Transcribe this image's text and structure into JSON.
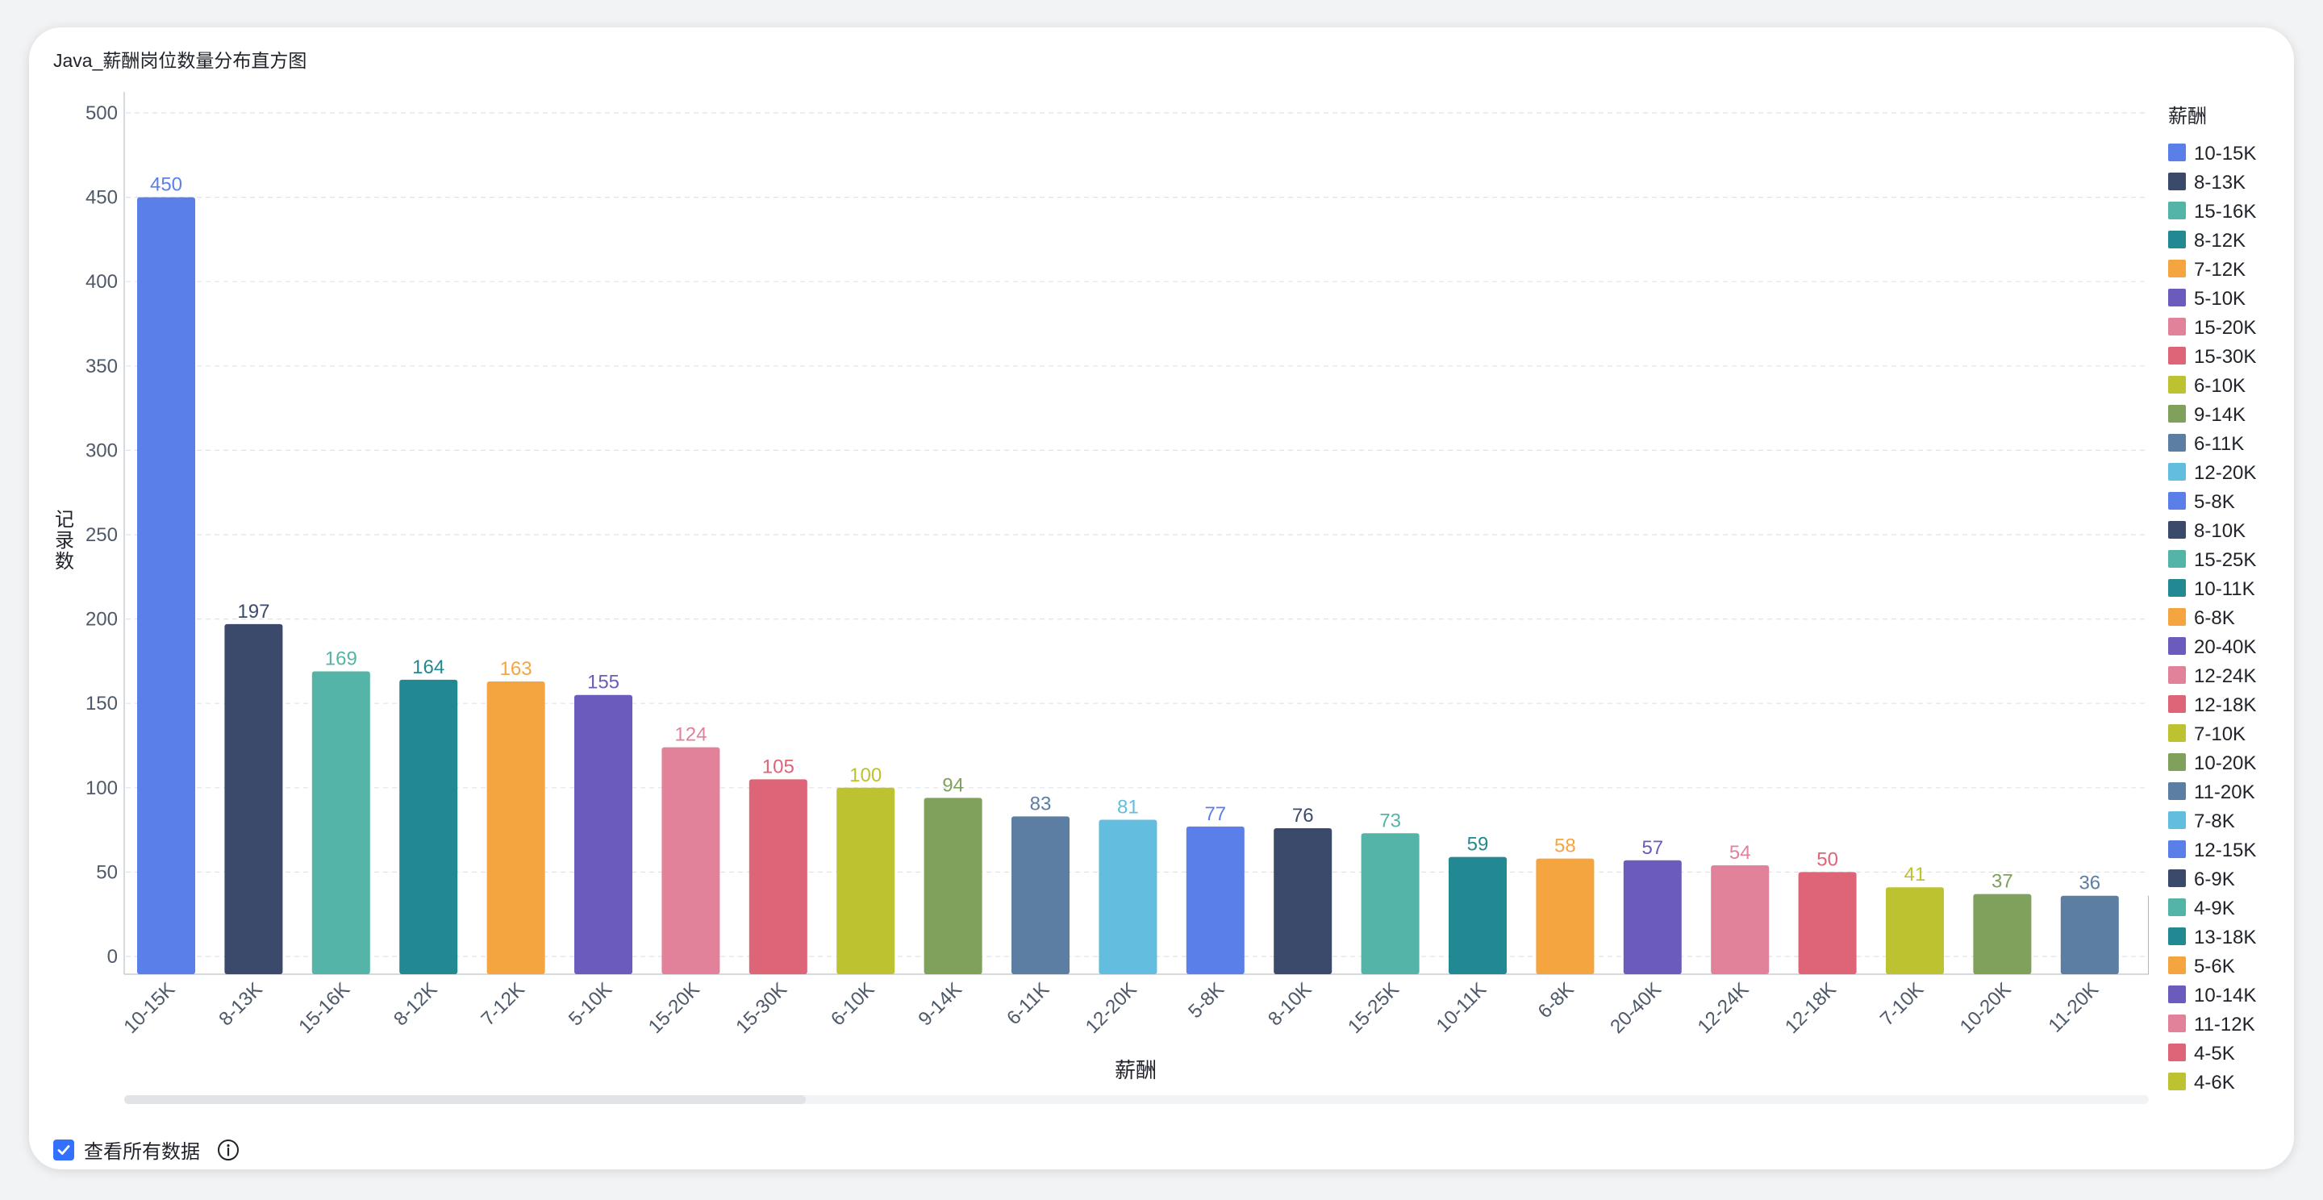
{
  "title": "Java_薪酬岗位数量分布直方图",
  "footer": {
    "checkbox_label": "查看所有数据",
    "checked": true,
    "info_icon": "info-circle-icon"
  },
  "chart_data": {
    "type": "bar",
    "title": "Java_薪酬岗位数量分布直方图",
    "xlabel": "薪酬",
    "ylabel": "记录数",
    "ylim": [
      0,
      500
    ],
    "yticks": [
      0,
      50,
      100,
      150,
      200,
      250,
      300,
      350,
      400,
      450,
      500
    ],
    "grid": true,
    "legend_position": "right",
    "legend_title": "薪酬",
    "categories": [
      "10-15K",
      "8-13K",
      "15-16K",
      "8-12K",
      "7-12K",
      "5-10K",
      "15-20K",
      "15-30K",
      "6-10K",
      "9-14K",
      "6-11K",
      "12-20K",
      "5-8K",
      "8-10K",
      "15-25K",
      "10-11K",
      "6-8K",
      "20-40K",
      "12-24K",
      "12-18K",
      "7-10K",
      "10-20K",
      "11-20K",
      "7-8K"
    ],
    "values": [
      450,
      197,
      169,
      164,
      163,
      155,
      124,
      105,
      100,
      94,
      83,
      81,
      77,
      76,
      73,
      59,
      58,
      57,
      54,
      50,
      41,
      37,
      36,
      null
    ],
    "colors": [
      "#5b7fe9",
      "#3b4a6b",
      "#55b4a8",
      "#228891",
      "#f5a53f",
      "#6b5bbd",
      "#e2829a",
      "#de6478",
      "#bcc230",
      "#7fa15c",
      "#5c7ea3",
      "#62bddf",
      "#5b7fe9",
      "#3b4a6b",
      "#55b4a8",
      "#228891",
      "#f5a53f",
      "#6b5bbd",
      "#e2829a",
      "#de6478",
      "#bcc230",
      "#7fa15c",
      "#5c7ea3",
      "#62bddf"
    ],
    "legend": [
      {
        "label": "10-15K",
        "color": "#5b7fe9"
      },
      {
        "label": "8-13K",
        "color": "#3b4a6b"
      },
      {
        "label": "15-16K",
        "color": "#55b4a8"
      },
      {
        "label": "8-12K",
        "color": "#228891"
      },
      {
        "label": "7-12K",
        "color": "#f5a53f"
      },
      {
        "label": "5-10K",
        "color": "#6b5bbd"
      },
      {
        "label": "15-20K",
        "color": "#e2829a"
      },
      {
        "label": "15-30K",
        "color": "#de6478"
      },
      {
        "label": "6-10K",
        "color": "#bcc230"
      },
      {
        "label": "9-14K",
        "color": "#7fa15c"
      },
      {
        "label": "6-11K",
        "color": "#5c7ea3"
      },
      {
        "label": "12-20K",
        "color": "#62bddf"
      },
      {
        "label": "5-8K",
        "color": "#5b7fe9"
      },
      {
        "label": "8-10K",
        "color": "#3b4a6b"
      },
      {
        "label": "15-25K",
        "color": "#55b4a8"
      },
      {
        "label": "10-11K",
        "color": "#228891"
      },
      {
        "label": "6-8K",
        "color": "#f5a53f"
      },
      {
        "label": "20-40K",
        "color": "#6b5bbd"
      },
      {
        "label": "12-24K",
        "color": "#e2829a"
      },
      {
        "label": "12-18K",
        "color": "#de6478"
      },
      {
        "label": "7-10K",
        "color": "#bcc230"
      },
      {
        "label": "10-20K",
        "color": "#7fa15c"
      },
      {
        "label": "11-20K",
        "color": "#5c7ea3"
      },
      {
        "label": "7-8K",
        "color": "#62bddf"
      },
      {
        "label": "12-15K",
        "color": "#5b7fe9"
      },
      {
        "label": "6-9K",
        "color": "#3b4a6b"
      },
      {
        "label": "4-9K",
        "color": "#55b4a8"
      },
      {
        "label": "13-18K",
        "color": "#228891"
      },
      {
        "label": "5-6K",
        "color": "#f5a53f"
      },
      {
        "label": "10-14K",
        "color": "#6b5bbd"
      },
      {
        "label": "11-12K",
        "color": "#e2829a"
      },
      {
        "label": "4-5K",
        "color": "#de6478"
      },
      {
        "label": "4-6K",
        "color": "#bcc230"
      }
    ]
  }
}
